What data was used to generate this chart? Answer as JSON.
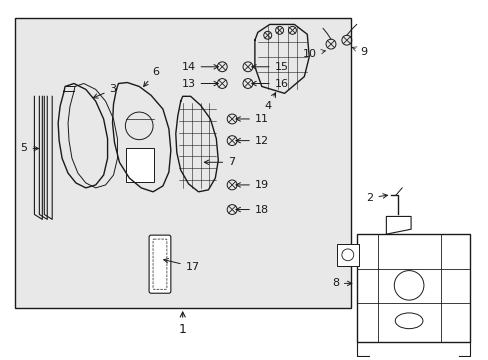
{
  "bg_color": "#e8e8e8",
  "line_color": "#1a1a1a",
  "figsize": [
    4.89,
    3.6
  ],
  "dpi": 100
}
